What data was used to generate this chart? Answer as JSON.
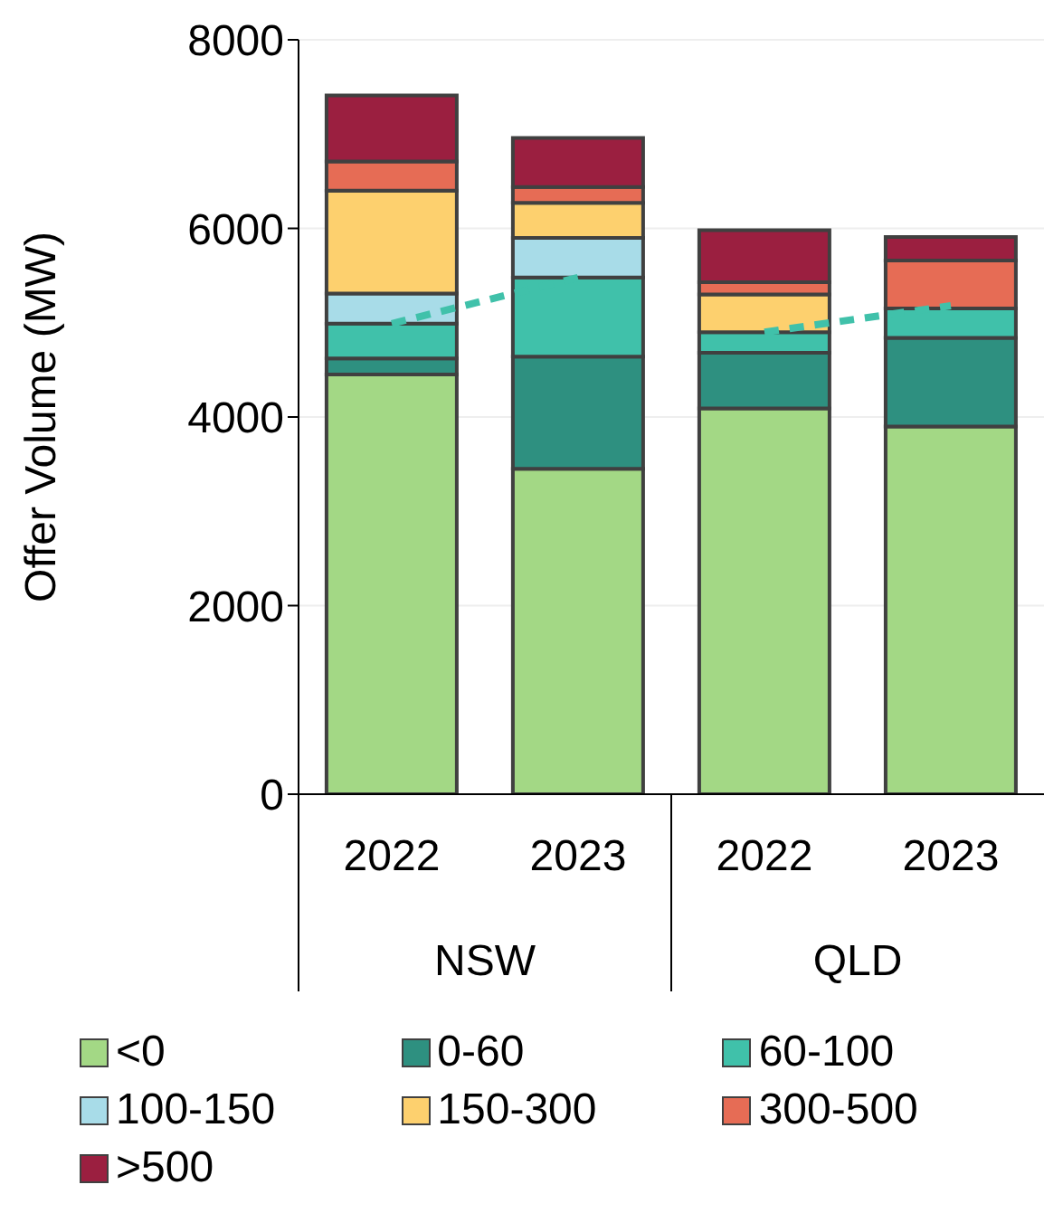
{
  "chart_data": {
    "type": "bar",
    "stacked": true,
    "ylabel": "Offer Volume (MW)",
    "categories": [
      "2022",
      "2023",
      "2022",
      "2023"
    ],
    "annotations": [
      "NSW",
      "QLD"
    ],
    "ylim": [
      0,
      8000
    ],
    "yticks": [
      0,
      2000,
      4000,
      6000,
      8000
    ],
    "grid": "y",
    "legend": "bottom",
    "series": [
      {
        "name": "<0",
        "color": "#a3d885",
        "values": [
          4450,
          3450,
          4090,
          3900
        ]
      },
      {
        "name": "0-60",
        "color": "#2e9080",
        "values": [
          170,
          1190,
          590,
          940
        ]
      },
      {
        "name": "60-100",
        "color": "#40c1aa",
        "values": [
          370,
          840,
          220,
          310
        ]
      },
      {
        "name": "100-150",
        "color": "#a8dce8",
        "values": [
          320,
          420,
          null,
          null
        ]
      },
      {
        "name": "150-300",
        "color": "#fdd06e",
        "values": [
          1090,
          370,
          400,
          null
        ]
      },
      {
        "name": "300-500",
        "color": "#e66c55",
        "values": [
          310,
          170,
          130,
          510
        ]
      },
      {
        "name": ">500",
        "color": "#9b1f40",
        "values": [
          700,
          520,
          550,
          250
        ]
      },
      {
        "type": "line",
        "color": "#40c1aa",
        "line_style": "dashed",
        "marker": "none",
        "values": [
          4990,
          5480,
          null,
          null
        ]
      },
      {
        "type": "line",
        "color": "#40c1aa",
        "line_style": "dashed",
        "marker": "none",
        "values": [
          null,
          null,
          4900,
          5180
        ]
      }
    ]
  }
}
